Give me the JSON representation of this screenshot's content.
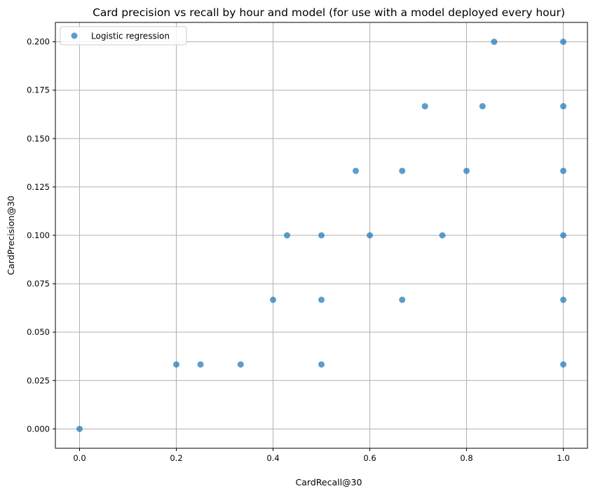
{
  "chart_data": {
    "type": "scatter",
    "title": "Card precision vs recall by hour and model (for use with a model deployed every hour)",
    "xlabel": "CardRecall@30",
    "ylabel": "CardPrecision@30",
    "xlim": [
      -0.05,
      1.05
    ],
    "ylim": [
      -0.01,
      0.21
    ],
    "xticks": [
      "0.0",
      "0.2",
      "0.4",
      "0.6",
      "0.8",
      "1.0"
    ],
    "yticks": [
      "0.000",
      "0.025",
      "0.050",
      "0.075",
      "0.100",
      "0.125",
      "0.150",
      "0.175",
      "0.200"
    ],
    "grid": true,
    "legend_position": "top-left",
    "series": [
      {
        "name": "Logistic regression",
        "color": "#1f77b4",
        "points": [
          [
            0.0,
            0.0
          ],
          [
            0.2,
            0.0333
          ],
          [
            0.25,
            0.0333
          ],
          [
            0.333,
            0.0333
          ],
          [
            0.5,
            0.0333
          ],
          [
            1.0,
            0.0333
          ],
          [
            0.4,
            0.0667
          ],
          [
            0.5,
            0.0667
          ],
          [
            0.667,
            0.0667
          ],
          [
            1.0,
            0.0667
          ],
          [
            0.429,
            0.1
          ],
          [
            0.5,
            0.1
          ],
          [
            0.6,
            0.1
          ],
          [
            0.75,
            0.1
          ],
          [
            1.0,
            0.1
          ],
          [
            0.571,
            0.1333
          ],
          [
            0.667,
            0.1333
          ],
          [
            0.8,
            0.1333
          ],
          [
            1.0,
            0.1333
          ],
          [
            0.714,
            0.1667
          ],
          [
            0.833,
            0.1667
          ],
          [
            1.0,
            0.1667
          ],
          [
            0.857,
            0.2
          ],
          [
            1.0,
            0.2
          ]
        ]
      }
    ]
  }
}
